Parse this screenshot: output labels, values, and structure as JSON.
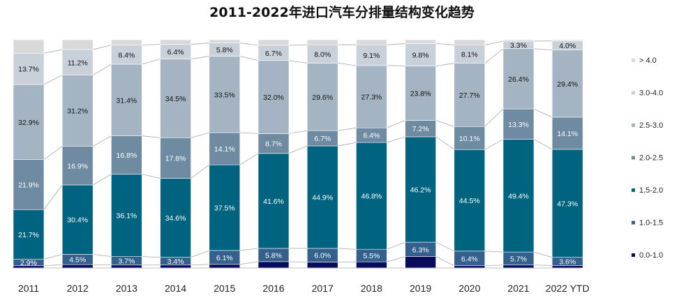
{
  "chart_data": {
    "type": "bar",
    "stacked": "percent",
    "title": "2011-2022年进口汽车分排量结构变化趋势",
    "xlabel": "",
    "ylabel": "",
    "ylim": [
      0,
      100
    ],
    "grid": false,
    "legend_position": "right",
    "categories": [
      "2011",
      "2012",
      "2013",
      "2014",
      "2015",
      "2016",
      "2017",
      "2018",
      "2019",
      "2020",
      "2021",
      "2022 YTD"
    ],
    "series": [
      {
        "name": "0.0-1.0",
        "color": "#0b0b5e",
        "values": [
          1.0,
          1.5,
          1.3,
          1.3,
          1.6,
          2.8,
          2.6,
          2.7,
          5.0,
          1.0,
          1.3,
          1.1
        ],
        "labels": [
          "",
          "",
          "",
          "",
          "",
          "",
          "",
          "",
          "",
          "",
          "",
          ""
        ]
      },
      {
        "name": "1.0-1.5",
        "color": "#33608c",
        "values": [
          2.9,
          4.5,
          3.7,
          3.4,
          6.1,
          5.8,
          6.0,
          5.5,
          6.3,
          6.4,
          5.7,
          3.6
        ],
        "labels": [
          "2.9%",
          "4.5%",
          "3.7%",
          "3.4%",
          "6.1%",
          "5.8%",
          "6.0%",
          "5.5%",
          "6.3%",
          "6.4%",
          "5.7%",
          "3.6%"
        ]
      },
      {
        "name": "1.5-2.0",
        "color": "#006380",
        "values": [
          21.7,
          30.4,
          36.1,
          34.6,
          37.5,
          41.6,
          44.9,
          46.8,
          46.2,
          44.5,
          49.4,
          47.3
        ],
        "labels": [
          "21.7%",
          "30.4%",
          "36.1%",
          "34.6%",
          "37.5%",
          "41.6%",
          "44.9%",
          "46.8%",
          "46.2%",
          "44.5%",
          "49.4%",
          "47.3%"
        ]
      },
      {
        "name": "2.0-2.5",
        "color": "#6e8ba1",
        "values": [
          21.9,
          16.9,
          16.8,
          17.8,
          14.1,
          8.7,
          6.7,
          6.4,
          7.2,
          10.1,
          13.3,
          14.1
        ],
        "labels": [
          "21.9%",
          "16.9%",
          "16.8%",
          "17.8%",
          "14.1%",
          "8.7%",
          "6.7%",
          "6.4%",
          "7.2%",
          "10.1%",
          "13.3%",
          "14.1%"
        ]
      },
      {
        "name": "2.5-3.0",
        "color": "#a5b4c3",
        "values": [
          32.9,
          31.2,
          31.4,
          34.5,
          33.5,
          32.0,
          29.6,
          27.3,
          23.8,
          27.7,
          26.4,
          29.4
        ],
        "labels": [
          "32.9%",
          "31.2%",
          "31.4%",
          "34.5%",
          "33.5%",
          "32.0%",
          "29.6%",
          "27.3%",
          "23.8%",
          "27.7%",
          "26.4%",
          "29.4%"
        ]
      },
      {
        "name": "3.0-4.0",
        "color": "#c8d0d9",
        "values": [
          13.7,
          11.2,
          8.4,
          6.4,
          5.8,
          6.7,
          8.0,
          9.1,
          9.8,
          8.1,
          3.3,
          4.0
        ],
        "labels": [
          "13.7%",
          "11.2%",
          "8.4%",
          "6.4%",
          "5.8%",
          "6.7%",
          "8.0%",
          "9.1%",
          "9.8%",
          "8.1%",
          "3.3%",
          "4.0%"
        ]
      },
      {
        "name": "> 4.0",
        "color": "#d9d9d9",
        "values": [
          5.9,
          4.3,
          2.3,
          2.0,
          1.4,
          2.4,
          2.2,
          2.2,
          1.7,
          2.2,
          0.6,
          0.5
        ],
        "labels": [
          "",
          "",
          "",
          "",
          "",
          "",
          "",
          "",
          "",
          "",
          "",
          ""
        ]
      }
    ],
    "label_text_colors": [
      "#ffffff",
      "#ffffff",
      "#ffffff",
      "#ffffff",
      "#111111",
      "#111111",
      "#111111"
    ],
    "connector_color": "#a6a6a6"
  }
}
